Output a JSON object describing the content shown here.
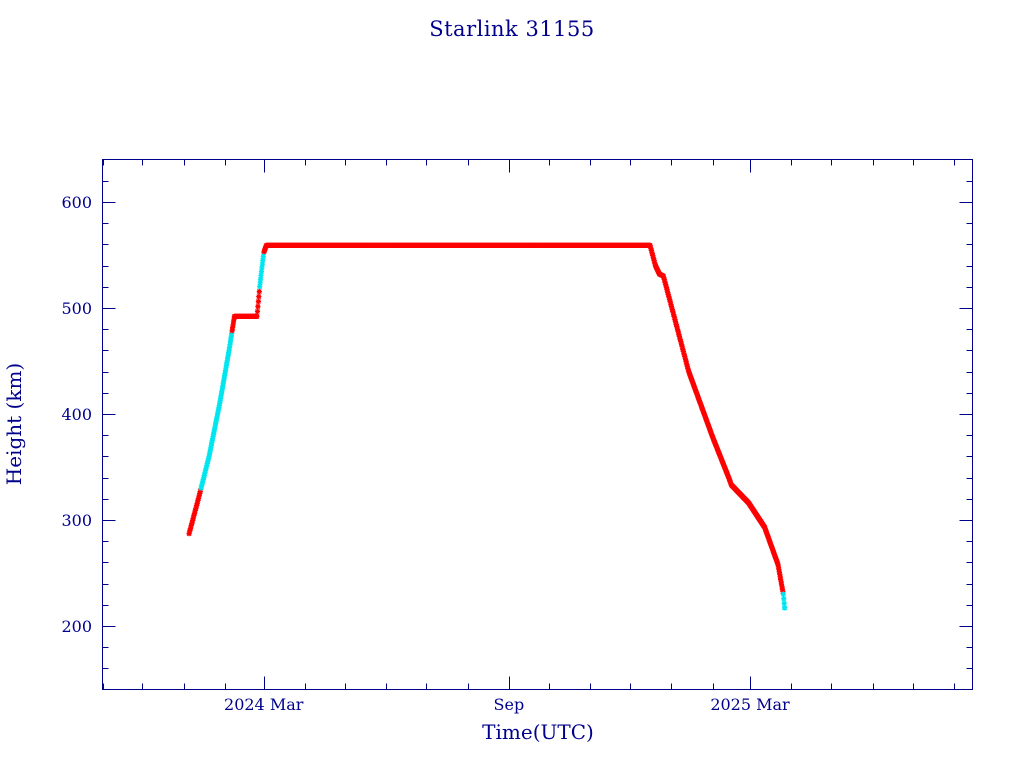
{
  "title": "Starlink 31155",
  "chart_data": {
    "type": "scatter",
    "title": "Starlink 31155",
    "xlabel": "Time(UTC)",
    "ylabel": "Height (km)",
    "x_axis_type": "date",
    "xlim": [
      "2023-11-01",
      "2025-08-15"
    ],
    "ylim": [
      140,
      640
    ],
    "y_ticks": [
      200,
      300,
      400,
      500,
      600
    ],
    "x_tick_labels": [
      {
        "date": "2024-03-01",
        "label": "2024 Mar"
      },
      {
        "date": "2024-09-01",
        "label": "Sep"
      },
      {
        "date": "2025-03-01",
        "label": "2025 Mar"
      }
    ],
    "grid": false,
    "colors": {
      "axis": "#00008b",
      "primary": "#ff0000",
      "secondary": "#00e5ee",
      "line": "#000000"
    },
    "profile": [
      {
        "date": "2024-01-05",
        "height": 287
      },
      {
        "date": "2024-01-12",
        "height": 320
      },
      {
        "date": "2024-01-20",
        "height": 360
      },
      {
        "date": "2024-01-28",
        "height": 410
      },
      {
        "date": "2024-02-04",
        "height": 460
      },
      {
        "date": "2024-02-08",
        "height": 492
      },
      {
        "date": "2024-02-25",
        "height": 492
      },
      {
        "date": "2024-02-27",
        "height": 520
      },
      {
        "date": "2024-03-01",
        "height": 552
      },
      {
        "date": "2024-03-03",
        "height": 559
      },
      {
        "date": "2024-12-16",
        "height": 559
      },
      {
        "date": "2024-12-20",
        "height": 540
      },
      {
        "date": "2024-12-23",
        "height": 532
      },
      {
        "date": "2024-12-26",
        "height": 530
      },
      {
        "date": "2025-01-14",
        "height": 440
      },
      {
        "date": "2025-02-01",
        "height": 378
      },
      {
        "date": "2025-02-13",
        "height": 340
      },
      {
        "date": "2025-02-15",
        "height": 333
      },
      {
        "date": "2025-02-28",
        "height": 316
      },
      {
        "date": "2025-03-12",
        "height": 293
      },
      {
        "date": "2025-03-22",
        "height": 258
      },
      {
        "date": "2025-03-26",
        "height": 230
      },
      {
        "date": "2025-03-27",
        "height": 217
      }
    ],
    "secondary_ranges": [
      [
        "2024-01-14",
        "2024-02-06"
      ],
      [
        "2024-02-27",
        "2024-03-01"
      ],
      [
        "2025-03-26",
        "2025-03-27"
      ]
    ]
  }
}
